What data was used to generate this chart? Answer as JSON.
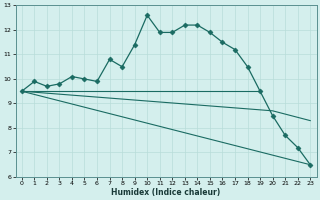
{
  "xlabel": "Humidex (Indice chaleur)",
  "xlim": [
    -0.5,
    23.5
  ],
  "ylim": [
    6,
    13
  ],
  "xticks": [
    0,
    1,
    2,
    3,
    4,
    5,
    6,
    7,
    8,
    9,
    10,
    11,
    12,
    13,
    14,
    15,
    16,
    17,
    18,
    19,
    20,
    21,
    22,
    23
  ],
  "yticks": [
    6,
    7,
    8,
    9,
    10,
    11,
    12,
    13
  ],
  "bg_color": "#d4efed",
  "line_color": "#1a6b62",
  "grid_color": "#b8ddd9",
  "line1_x": [
    0,
    1,
    2,
    3,
    4,
    5,
    6,
    7,
    8,
    9,
    10,
    11,
    12,
    13,
    14,
    15,
    16,
    17,
    18,
    19,
    20,
    21,
    22,
    23
  ],
  "line1_y": [
    9.5,
    9.9,
    9.7,
    9.8,
    10.1,
    10.0,
    9.9,
    10.8,
    10.5,
    11.4,
    12.6,
    11.9,
    11.9,
    12.2,
    12.2,
    11.9,
    11.5,
    11.2,
    10.5,
    9.5,
    8.5,
    7.7,
    7.2,
    6.5
  ],
  "line2_x": [
    0,
    19
  ],
  "line2_y": [
    9.5,
    9.5
  ],
  "line3_x": [
    0,
    20,
    23
  ],
  "line3_y": [
    9.5,
    8.7,
    8.3
  ],
  "line4_x": [
    0,
    23
  ],
  "line4_y": [
    9.5,
    6.5
  ],
  "marker": "D",
  "markersize": 2.5
}
